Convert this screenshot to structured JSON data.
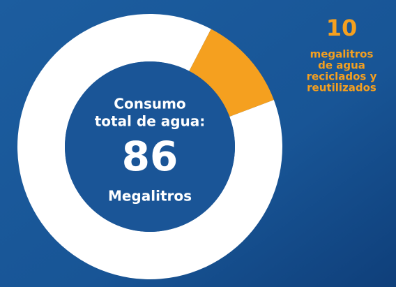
{
  "chart_data": {
    "type": "donut",
    "center": {
      "title": [
        "Consumo",
        "total de agua:"
      ],
      "value": 86,
      "unit": "Megalitros"
    },
    "segment": {
      "value": 10,
      "label": [
        "megalitros",
        "de agua",
        "reciclados y",
        "reutilizados"
      ],
      "color": "#f5a01f"
    },
    "ring_color": "#ffffff"
  }
}
